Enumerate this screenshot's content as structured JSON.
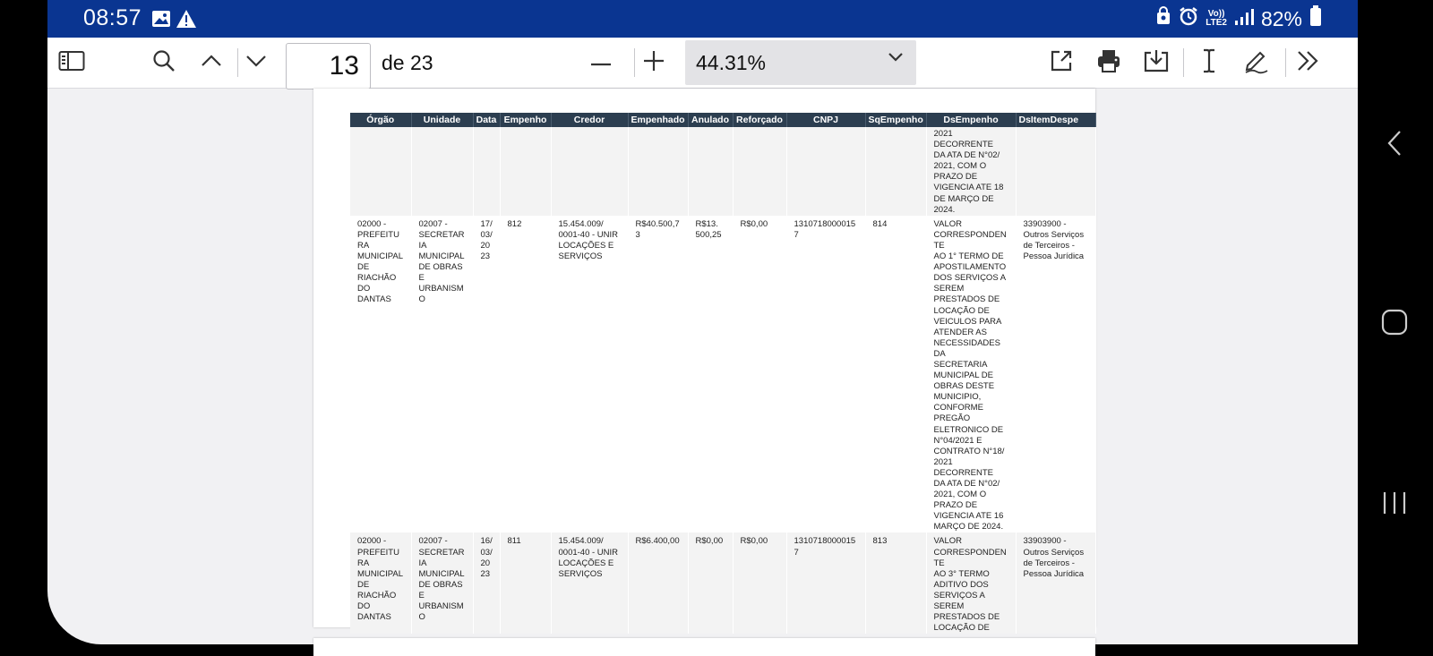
{
  "status_bar": {
    "time": "08:57",
    "battery": "82%",
    "network": "LTE2",
    "volte": "Vo))",
    "icons": [
      "gallery-icon",
      "warning-icon",
      "vault-icon",
      "alarm-icon",
      "signal-icon",
      "battery-icon"
    ]
  },
  "toolbar": {
    "page_current": "13",
    "page_total": "de 23",
    "zoom": "44.31%",
    "icons": [
      "sidebar-icon",
      "search-icon",
      "chevron-up-icon",
      "chevron-down-icon",
      "minus-icon",
      "plus-icon",
      "zoom-dropdown-icon",
      "share-icon",
      "print-icon",
      "download-icon",
      "text-select-icon",
      "annotate-icon",
      "more-icon"
    ]
  },
  "table": {
    "headers": [
      "Órgão",
      "Unidade",
      "Data",
      "Empenho",
      "Credor",
      "Empenhado",
      "Anulado",
      "Reforçado",
      "CNPJ",
      "SqEmpenho",
      "DsEmpenho",
      "DsItemDespe"
    ],
    "rows": [
      [
        "",
        "",
        "",
        "",
        "",
        "",
        "",
        "",
        "",
        "",
        "2021 DECORRENTE\nDA ATA DE N°02/\n2021, COM O\nPRAZO DE\nVIGENCIA ATE 18\nDE MARÇO DE\n2024.",
        ""
      ],
      [
        "02000 -\nPREFEITURA\nMUNICIPAL\nDE RIACHÃO\nDO DANTAS",
        "02007 -\nSECRETARIA\nMUNICIPAL\nDE OBRAS E\nURBANISMO",
        "17/\n03/\n2023",
        "812",
        "15.454.009/\n0001-40 - UNIR\nLOCAÇÕES E\nSERVIÇOS",
        "R$40.500,73",
        "R$13.\n500,25",
        "R$0,00",
        "13107180000157",
        "814",
        "VALOR\nCORRESPONDENTE\nAO 1° TERMO DE\nAPOSTILAMENTO\nDOS SERVIÇOS A\nSEREM\nPRESTADOS DE\nLOCAÇÃO DE\nVEICULOS PARA\nATENDER AS\nNECESSIDADES DA\nSECRETARIA\nMUNICIPAL DE\nOBRAS DESTE\nMUNICIPIO,\nCONFORME\nPREGÃO\nELETRONICO DE\nN°04/2021 E\nCONTRATO N°18/\n2021 DECORRENTE\nDA ATA DE N°02/\n2021, COM O\nPRAZO DE\nVIGENCIA ATE 16\nMARÇO DE 2024.",
        "33903900 -\nOutros Serviços\nde Terceiros -\nPessoa Jurídica"
      ],
      [
        "02000 -\nPREFEITURA\nMUNICIPAL\nDE RIACHÃO\nDO DANTAS",
        "02007 -\nSECRETARIA\nMUNICIPAL\nDE OBRAS E\nURBANISMO",
        "16/\n03/\n2023",
        "811",
        "15.454.009/\n0001-40 - UNIR\nLOCAÇÕES E\nSERVIÇOS",
        "R$6.400,00",
        "R$0,00",
        "R$0,00",
        "13107180000157",
        "813",
        "VALOR\nCORRESPONDENTE\nAO 3° TERMO\nADITIVO DOS\nSERVIÇOS A\nSEREM\nPRESTADOS DE\nLOCAÇÃO DE",
        "33903900 -\nOutros Serviços\nde Terceiros -\nPessoa Jurídica"
      ]
    ]
  },
  "nav_bar": {
    "icons": [
      "back-icon",
      "home-icon",
      "recents-icon"
    ]
  }
}
